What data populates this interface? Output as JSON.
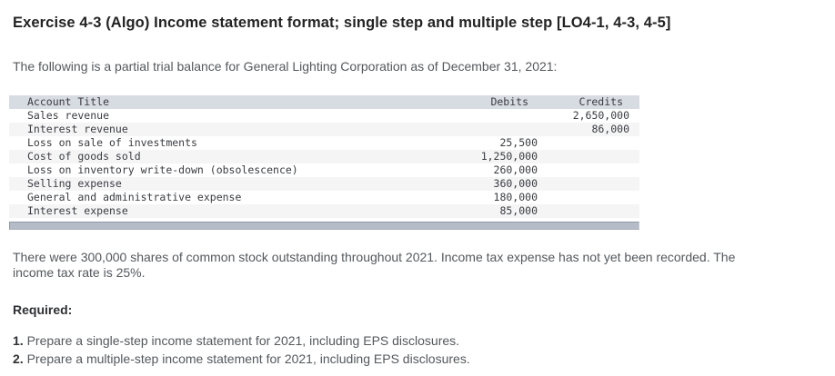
{
  "page": {
    "title": "Exercise 4-3 (Algo) Income statement format; single step and multiple step [LO4-1, 4-3, 4-5]",
    "intro": "The following is a partial trial balance for General Lighting Corporation as of December 31, 2021:",
    "note_line1": "There were 300,000 shares of common stock outstanding throughout 2021. Income tax expense has not yet been recorded. The",
    "note_line2": "income tax rate is 25%.",
    "required_label": "Required:",
    "requirements": [
      {
        "number": "1.",
        "text": "Prepare a single-step income statement for 2021, including EPS disclosures."
      },
      {
        "number": "2.",
        "text": "Prepare a multiple-step income statement for 2021, including EPS disclosures."
      }
    ]
  },
  "trial_balance": {
    "company": "General Lighting Corporation",
    "as_of": "December 31, 2021",
    "columns": {
      "account": "Account Title",
      "debits": "Debits",
      "credits": "Credits"
    },
    "rows": [
      {
        "account": "Sales revenue",
        "debit": "",
        "credit": "2,650,000"
      },
      {
        "account": "Interest revenue",
        "debit": "",
        "credit": "86,000"
      },
      {
        "account": "Loss on sale of investments",
        "debit": "25,500",
        "credit": ""
      },
      {
        "account": "Cost of goods sold",
        "debit": "1,250,000",
        "credit": ""
      },
      {
        "account": "Loss on inventory write-down (obsolescence)",
        "debit": "260,000",
        "credit": ""
      },
      {
        "account": "Selling expense",
        "debit": "360,000",
        "credit": ""
      },
      {
        "account": "General and administrative expense",
        "debit": "180,000",
        "credit": ""
      },
      {
        "account": "Interest expense",
        "debit": "85,000",
        "credit": ""
      }
    ]
  },
  "colors": {
    "table_header_bg": "#d7dbe2",
    "row_stripe_bg": "#f5f5f6",
    "scrollbar": "#b5bcc8",
    "body_text": "#54585c",
    "title_text": "#232323"
  }
}
